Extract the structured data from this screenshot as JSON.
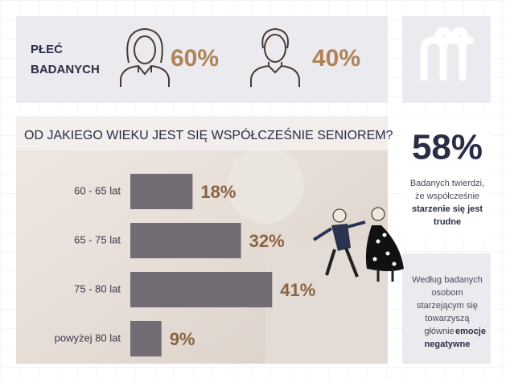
{
  "gender": {
    "title": [
      "PŁEĆ",
      "BADANYCH"
    ],
    "items": [
      {
        "label": "60%"
      },
      {
        "label": "40%"
      }
    ]
  },
  "chart_data": {
    "type": "bar",
    "title": "OD JAKIEGO WIEKU JEST SIĘ WSPÓŁCZEŚNIE SENIOREM?",
    "categories": [
      "60 - 65 lat",
      "65 - 75 lat",
      "75 - 80 lat",
      "powyżej 80 lat"
    ],
    "values": [
      18,
      32,
      41,
      9
    ],
    "value_labels": [
      "18%",
      "32%",
      "41%",
      "9%"
    ],
    "color": "#726c75",
    "label_color": "#8b6443"
  },
  "stat": {
    "value": "58%",
    "text": [
      "Badanych twierdzi,",
      "że współcześnie"
    ],
    "bold": [
      "starzenie się jest",
      "trudne"
    ]
  },
  "note": {
    "text": [
      "Według badanych",
      "osobom",
      "starzejącym się",
      "towarzyszą",
      "głównie"
    ],
    "bold": [
      "emocje",
      "negatywne"
    ]
  }
}
